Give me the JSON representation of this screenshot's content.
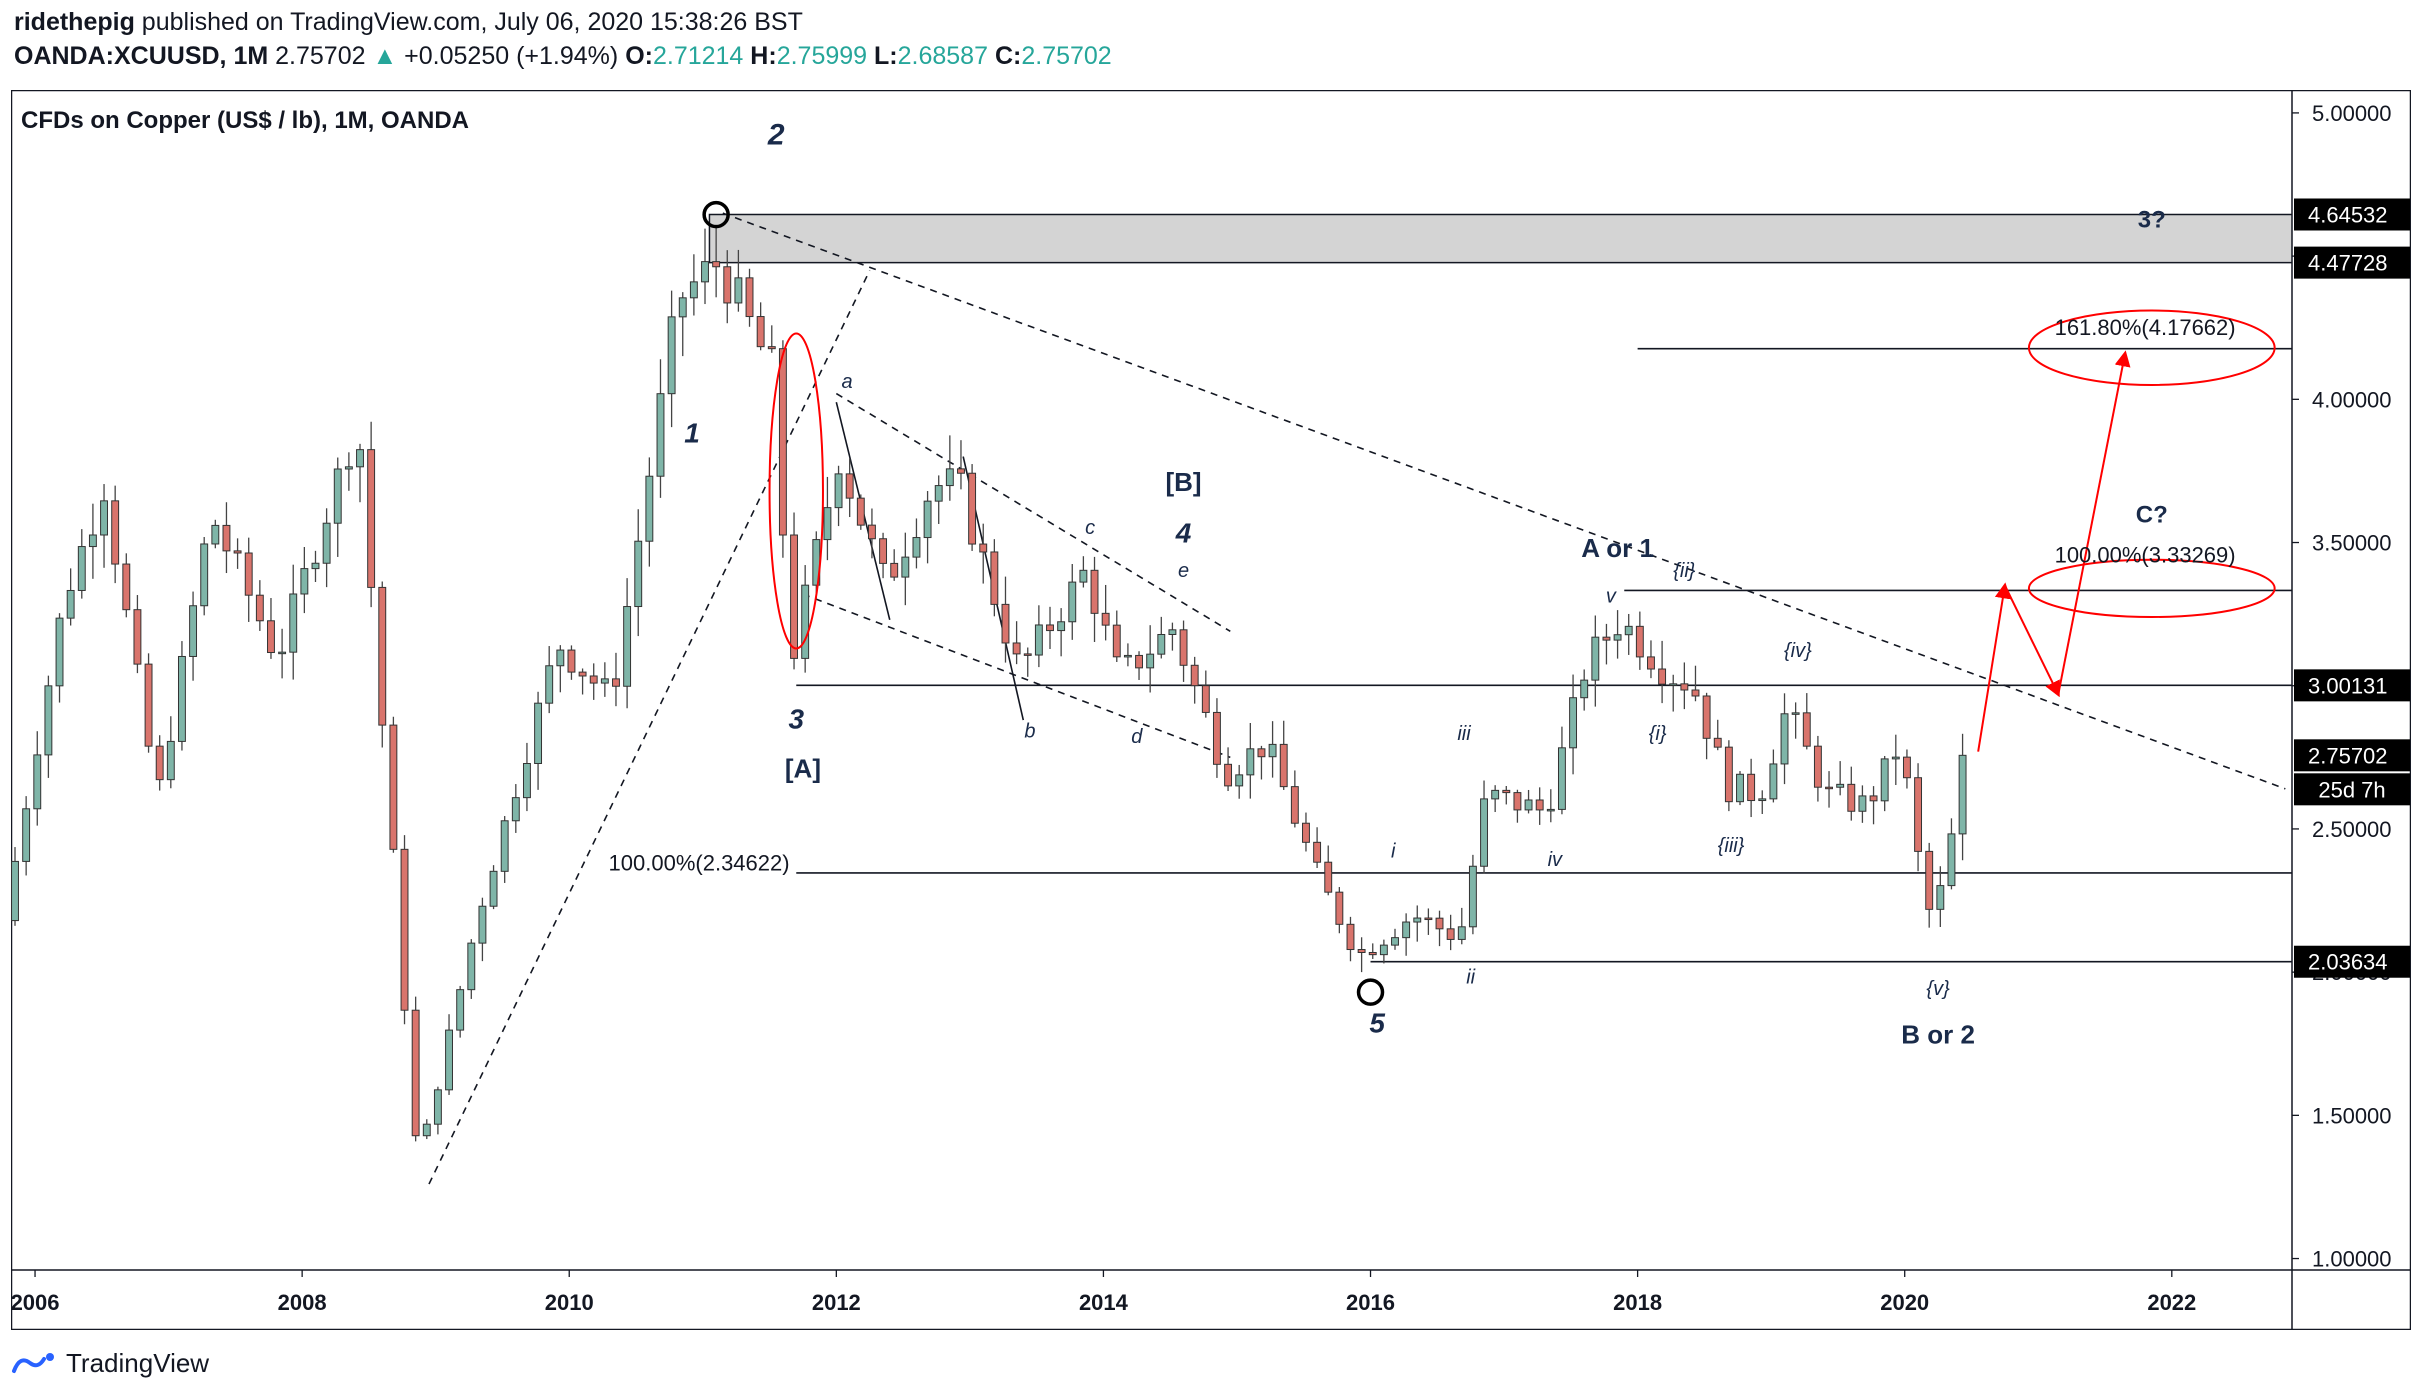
{
  "header": {
    "author": "ridethepig",
    "published_text": "published on TradingView.com, July 06, 2020 15:38:26 BST",
    "symbol": "OANDA:XCUUSD, 1M",
    "last": "2.75702",
    "change": "+0.05250 (+1.94%)",
    "o_label": "O:",
    "o_value": "2.71214",
    "h_label": "H:",
    "h_value": "2.75999",
    "l_label": "L:",
    "l_value": "2.68587",
    "c_label": "C:",
    "c_value": "2.75702"
  },
  "footer": {
    "brand": "TradingView"
  },
  "colors": {
    "up": "#26a69a",
    "down": "#ef5350",
    "bull_fill": "#7fb5a8",
    "bear_fill": "#d9746c",
    "annotation": "#ff0000",
    "zone": "#d4d4d4"
  },
  "chart_data": {
    "type": "candlestick",
    "title": "CFDs on Copper (US$ / lb), 1M, OANDA",
    "x_ticks": [
      "2006",
      "2008",
      "2010",
      "2012",
      "2014",
      "2016",
      "2018",
      "2020",
      "2022"
    ],
    "x_tick_years": [
      2006,
      2008,
      2010,
      2012,
      2014,
      2016,
      2018,
      2020,
      2022
    ],
    "xlim": [
      2005.82,
      2022.9
    ],
    "ylim": [
      0.96,
      5.08
    ],
    "y_ticks": [
      "1.00000",
      "1.50000",
      "2.00000",
      "2.50000",
      "3.00000",
      "3.50000",
      "4.00000",
      "4.50000",
      "5.00000"
    ],
    "y_tick_values": [
      1.0,
      1.5,
      2.0,
      2.5,
      3.0,
      3.5,
      4.0,
      4.5,
      5.0
    ],
    "price_labels": [
      {
        "text": "4.64532",
        "value": 4.64532
      },
      {
        "text": "4.47728",
        "value": 4.47728
      },
      {
        "text": "3.00131",
        "value": 3.00131
      },
      {
        "text": "2.75702",
        "value": 2.75702
      },
      {
        "text": "2.03634",
        "value": 2.03634
      }
    ],
    "countdown": "25d 7h",
    "key_points": [
      {
        "year": 2005.85,
        "price": 2.18
      },
      {
        "year": 2006.3,
        "price": 3.3
      },
      {
        "year": 2006.6,
        "price": 3.7
      },
      {
        "year": 2007.0,
        "price": 2.6
      },
      {
        "year": 2007.4,
        "price": 3.6
      },
      {
        "year": 2007.9,
        "price": 3.1
      },
      {
        "year": 2008.5,
        "price": 3.93
      },
      {
        "year": 2008.95,
        "price": 1.32
      },
      {
        "year": 2009.4,
        "price": 2.2
      },
      {
        "year": 2010.0,
        "price": 3.15
      },
      {
        "year": 2010.4,
        "price": 2.95
      },
      {
        "year": 2010.9,
        "price": 4.35
      },
      {
        "year": 2011.2,
        "price": 4.48
      },
      {
        "year": 2011.6,
        "price": 4.1
      },
      {
        "year": 2011.75,
        "price": 3.1
      },
      {
        "year": 2012.1,
        "price": 3.8
      },
      {
        "year": 2012.45,
        "price": 3.35
      },
      {
        "year": 2012.8,
        "price": 3.7
      },
      {
        "year": 2013.0,
        "price": 3.7
      },
      {
        "year": 2013.45,
        "price": 3.05
      },
      {
        "year": 2013.95,
        "price": 3.4
      },
      {
        "year": 2014.2,
        "price": 3.03
      },
      {
        "year": 2014.6,
        "price": 3.2
      },
      {
        "year": 2015.0,
        "price": 2.7
      },
      {
        "year": 2015.3,
        "price": 2.8
      },
      {
        "year": 2015.7,
        "price": 2.32
      },
      {
        "year": 2016.0,
        "price": 2.06
      },
      {
        "year": 2016.4,
        "price": 2.2
      },
      {
        "year": 2016.75,
        "price": 2.12
      },
      {
        "year": 2016.95,
        "price": 2.62
      },
      {
        "year": 2017.4,
        "price": 2.56
      },
      {
        "year": 2017.7,
        "price": 3.08
      },
      {
        "year": 2017.95,
        "price": 3.23
      },
      {
        "year": 2018.3,
        "price": 3.05
      },
      {
        "year": 2018.5,
        "price": 3.0
      },
      {
        "year": 2018.75,
        "price": 2.65
      },
      {
        "year": 2019.0,
        "price": 2.62
      },
      {
        "year": 2019.2,
        "price": 2.92
      },
      {
        "year": 2019.5,
        "price": 2.62
      },
      {
        "year": 2019.8,
        "price": 2.58
      },
      {
        "year": 2020.05,
        "price": 2.8
      },
      {
        "year": 2020.25,
        "price": 2.2
      },
      {
        "year": 2020.4,
        "price": 2.32
      },
      {
        "year": 2020.5,
        "price": 2.75702
      }
    ],
    "trendlines": [
      {
        "style": "dashed",
        "from": [
          2011.15,
          4.65
        ],
        "to": [
          2022.85,
          2.64
        ]
      },
      {
        "style": "dashed",
        "from": [
          2008.95,
          1.26
        ],
        "to": [
          2012.25,
          4.45
        ]
      },
      {
        "style": "dashed",
        "from": [
          2012.0,
          4.02
        ],
        "to": [
          2014.95,
          3.19
        ]
      },
      {
        "style": "dashed",
        "from": [
          2011.75,
          3.32
        ],
        "to": [
          2014.95,
          2.75
        ]
      },
      {
        "style": "solid",
        "from": [
          2012.0,
          3.99
        ],
        "to": [
          2012.4,
          3.23
        ]
      },
      {
        "style": "solid",
        "from": [
          2012.95,
          3.8
        ],
        "to": [
          2013.4,
          2.88
        ]
      }
    ],
    "horizontal_lines": [
      {
        "value": 4.17662,
        "from_year": 2018.0
      },
      {
        "value": 3.33269,
        "from_year": 2017.9
      },
      {
        "value": 3.00131,
        "from_year": 2011.7
      },
      {
        "value": 2.34622,
        "from_year": 2011.7
      },
      {
        "value": 2.03634,
        "from_year": 2016.0
      }
    ],
    "zone": {
      "low": 4.47728,
      "high": 4.64532,
      "from_year": 2011.05
    },
    "levels_text": [
      {
        "text": "100.00%(2.34622)",
        "year": 2011.65,
        "price": 2.355,
        "anchor": "end"
      },
      {
        "text": "100.00%(3.33269)",
        "year": 2021.8,
        "price": 3.43,
        "anchor": "middle"
      },
      {
        "text": "161.80%(4.17662)",
        "year": 2021.8,
        "price": 4.225,
        "anchor": "middle"
      }
    ],
    "annotations": [
      {
        "text": "2",
        "year": 2011.55,
        "price": 4.89,
        "size": 30,
        "weight": "bold",
        "style": "italic"
      },
      {
        "text": "1",
        "year": 2010.92,
        "price": 3.85,
        "size": 28,
        "weight": "bold",
        "style": "italic"
      },
      {
        "text": "3",
        "year": 2011.7,
        "price": 2.85,
        "size": 28,
        "weight": "bold",
        "style": "italic"
      },
      {
        "text": "[A]",
        "year": 2011.75,
        "price": 2.68,
        "size": 26,
        "weight": "bold",
        "style": "normal"
      },
      {
        "text": "a",
        "year": 2012.08,
        "price": 4.04,
        "size": 20,
        "weight": "normal",
        "style": "italic"
      },
      {
        "text": "b",
        "year": 2013.45,
        "price": 2.82,
        "size": 20,
        "weight": "normal",
        "style": "italic"
      },
      {
        "text": "c",
        "year": 2013.9,
        "price": 3.53,
        "size": 20,
        "weight": "normal",
        "style": "italic"
      },
      {
        "text": "d",
        "year": 2014.25,
        "price": 2.8,
        "size": 20,
        "weight": "normal",
        "style": "italic"
      },
      {
        "text": "e",
        "year": 2014.6,
        "price": 3.38,
        "size": 20,
        "weight": "normal",
        "style": "italic"
      },
      {
        "text": "[B]",
        "year": 2014.6,
        "price": 3.68,
        "size": 26,
        "weight": "bold",
        "style": "normal"
      },
      {
        "text": "4",
        "year": 2014.6,
        "price": 3.5,
        "size": 28,
        "weight": "bold",
        "style": "italic"
      },
      {
        "text": "5",
        "year": 2016.05,
        "price": 1.79,
        "size": 28,
        "weight": "bold",
        "style": "italic"
      },
      {
        "text": "i",
        "year": 2016.17,
        "price": 2.4,
        "size": 20,
        "weight": "normal",
        "style": "italic"
      },
      {
        "text": "ii",
        "year": 2016.75,
        "price": 1.96,
        "size": 20,
        "weight": "normal",
        "style": "italic"
      },
      {
        "text": "iii",
        "year": 2016.7,
        "price": 2.81,
        "size": 20,
        "weight": "normal",
        "style": "italic"
      },
      {
        "text": "iv",
        "year": 2017.38,
        "price": 2.37,
        "size": 20,
        "weight": "normal",
        "style": "italic"
      },
      {
        "text": "v",
        "year": 2017.8,
        "price": 3.29,
        "size": 20,
        "weight": "normal",
        "style": "italic"
      },
      {
        "text": "A or 1",
        "year": 2017.85,
        "price": 3.45,
        "size": 26,
        "weight": "bold",
        "style": "normal"
      },
      {
        "text": "{i}",
        "year": 2018.15,
        "price": 2.81,
        "size": 20,
        "weight": "normal",
        "style": "italic"
      },
      {
        "text": "{ii}",
        "year": 2018.35,
        "price": 3.38,
        "size": 20,
        "weight": "normal",
        "style": "italic"
      },
      {
        "text": "{iii}",
        "year": 2018.7,
        "price": 2.42,
        "size": 20,
        "weight": "normal",
        "style": "italic"
      },
      {
        "text": "{iv}",
        "year": 2019.2,
        "price": 3.1,
        "size": 20,
        "weight": "normal",
        "style": "italic"
      },
      {
        "text": "{v}",
        "year": 2020.25,
        "price": 1.92,
        "size": 20,
        "weight": "normal",
        "style": "italic"
      },
      {
        "text": "B or 2",
        "year": 2020.25,
        "price": 1.75,
        "size": 26,
        "weight": "bold",
        "style": "normal"
      },
      {
        "text": "3?",
        "year": 2021.85,
        "price": 4.6,
        "size": 24,
        "weight": "bold",
        "style": "normal"
      },
      {
        "text": "C?",
        "year": 2021.85,
        "price": 3.57,
        "size": 24,
        "weight": "bold",
        "style": "normal"
      }
    ],
    "circles": [
      {
        "year": 2011.1,
        "price": 4.645
      },
      {
        "year": 2016.0,
        "price": 1.93
      }
    ],
    "red_ellipses": [
      {
        "year": 2011.7,
        "price": 3.68,
        "rx_years": 0.2,
        "ry_price": 0.55
      },
      {
        "year": 2021.85,
        "price": 3.34,
        "rx_years": 0.92,
        "ry_price": 0.1
      },
      {
        "year": 2021.85,
        "price": 4.18,
        "rx_years": 0.92,
        "ry_price": 0.13
      }
    ],
    "red_path": [
      {
        "year": 2020.55,
        "price": 2.77
      },
      {
        "year": 2020.75,
        "price": 3.35
      },
      {
        "year": 2021.15,
        "price": 2.97
      },
      {
        "year": 2021.65,
        "price": 4.16
      }
    ]
  }
}
